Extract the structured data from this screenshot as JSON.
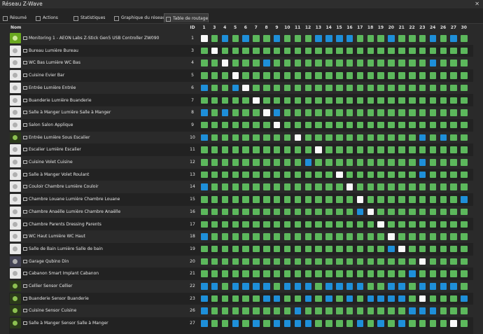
{
  "window": {
    "title": "Réseau Z-Wave",
    "close_icon": "close-icon"
  },
  "tabs": [
    {
      "label": "Résumé",
      "icon": "home-icon",
      "active": false
    },
    {
      "label": "Actions",
      "icon": "list-icon",
      "active": false
    },
    {
      "label": "Statistiques",
      "icon": "bar-chart-icon",
      "active": false
    },
    {
      "label": "Graphique du réseau",
      "icon": "network-icon",
      "active": false
    },
    {
      "label": "Table de routage",
      "icon": "table-icon",
      "active": true
    }
  ],
  "table": {
    "name_header": "Nom",
    "id_header": "ID",
    "columns": [
      "1",
      "3",
      "4",
      "5",
      "6",
      "7",
      "8",
      "9",
      "10",
      "11",
      "12",
      "13",
      "14",
      "15",
      "16",
      "17",
      "18",
      "19",
      "20",
      "21",
      "22",
      "23",
      "24",
      "26",
      "27",
      "30"
    ],
    "status_colors": {
      "g": "#5cb85c",
      "b": "#1e8fd9",
      "w": "#fafafa"
    },
    "rows": [
      {
        "name": "Monitoring 1 - AEON Labs Z-Stick Gen5 USB Controller ZW090",
        "id": "1",
        "thumb": "zstick",
        "cells": "wgbgbggbgggbbbbgggbgggbgbg"
      },
      {
        "name": "Bureau Lumière Bureau",
        "id": "3",
        "thumb": "plain",
        "cells": "gwgggggggggggggggggggggggg"
      },
      {
        "name": "WC Bas Lumière WC Bas",
        "id": "4",
        "thumb": "plain",
        "cells": "ggwgggbgggggggggggggggbggg"
      },
      {
        "name": "Cuisine Evier Bar",
        "id": "5",
        "thumb": "plain",
        "cells": "gggwgggggggggggggggggggggg"
      },
      {
        "name": "Entrée Lumière Entrée",
        "id": "6",
        "thumb": "plain",
        "cells": "bggbwggggggggggggggggggggg"
      },
      {
        "name": "Buanderie Lumière Buanderie",
        "id": "7",
        "thumb": "plain",
        "cells": "gggggwgggggggggggggggggggg"
      },
      {
        "name": "Salle à Manger Lumière Salle à Manger",
        "id": "8",
        "thumb": "plain",
        "cells": "bgbgggwbgggggggggggggggggg"
      },
      {
        "name": "Salon Salon Applique",
        "id": "9",
        "thumb": "plain",
        "cells": "gggggggwgggggggggggggggggg"
      },
      {
        "name": "Entrée Lumière Sous Escalier",
        "id": "10",
        "thumb": "green",
        "cells": "bggggggggwgggggggggggbgbgg"
      },
      {
        "name": "Escalier Lumière Escalier",
        "id": "11",
        "thumb": "plain",
        "cells": "gggggggggggwgggggggggggggg"
      },
      {
        "name": "Cuisine Volet Cuisine",
        "id": "12",
        "thumb": "plain",
        "cells": "ggggggggggbggggggggggbgggg"
      },
      {
        "name": "Salle à Manger Volet Roulant",
        "id": "13",
        "thumb": "plain",
        "cells": "gggggggggggggwgggggggbgggg"
      },
      {
        "name": "Couloir Chambre Lumière Couloir",
        "id": "14",
        "thumb": "plain",
        "cells": "bgggggggggggggwggggggggggg"
      },
      {
        "name": "Chambre Louane Lumière Chambre Louane",
        "id": "15",
        "thumb": "plain",
        "cells": "gggggggggggggggwgggggggggb"
      },
      {
        "name": "Chambre Anaëlle Lumière Chambre Anaëlle",
        "id": "16",
        "thumb": "plain",
        "cells": "gggggggggggggggbwggggggggg"
      },
      {
        "name": "Chambre Parents Dressing Parents",
        "id": "17",
        "thumb": "plain",
        "cells": "gggggggggggggggggwgggggggg"
      },
      {
        "name": "WC Haut Lumière WC Haut",
        "id": "18",
        "thumb": "plain",
        "cells": "bgggggggggggggggggwggggggg"
      },
      {
        "name": "Salle de Bain Lumière Salle de bain",
        "id": "19",
        "thumb": "plain",
        "cells": "ggggggggggggggggggbwgggggg"
      },
      {
        "name": "Garage Qubino Din",
        "id": "20",
        "thumb": "car",
        "cells": "gggggggggggggggggggggwgggg"
      },
      {
        "name": "Cabanon Smart Implant Cabanon",
        "id": "21",
        "thumb": "plain",
        "cells": "ggggggggggggggggggggbggggg"
      },
      {
        "name": "Cellier Sensor Cellier",
        "id": "22",
        "thumb": "green",
        "cells": "bbgbbbbgbbbgbbbbggbbgbbbbg"
      },
      {
        "name": "Buanderie Sensor Buanderie",
        "id": "23",
        "thumb": "green",
        "cells": "bgggggbbggbgbgbgbbbbgwgggb"
      },
      {
        "name": "Cuisine Sensor Cuisine",
        "id": "26",
        "thumb": "green",
        "cells": "bggggggggbggggggggggbbbggg"
      },
      {
        "name": "Salle à Manger Sensor Salle à Manger",
        "id": "27",
        "thumb": "green",
        "cells": "bggbgbgbbbbggggbgbgbggggwg"
      }
    ]
  }
}
